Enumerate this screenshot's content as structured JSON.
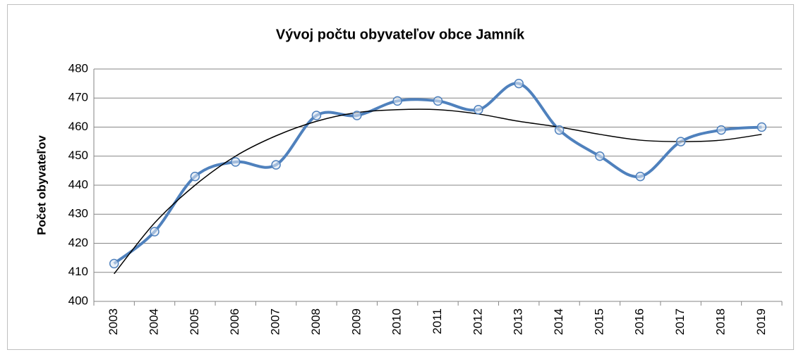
{
  "chart_data": {
    "type": "line",
    "title": "Vývoj počtu obyvateľov obce Jamník",
    "y_label": "Počet obyvateľov",
    "categories": [
      "2003",
      "2004",
      "2005",
      "2006",
      "2007",
      "2008",
      "2009",
      "2010",
      "2011",
      "2012",
      "2013",
      "2014",
      "2015",
      "2016",
      "2017",
      "2018",
      "2019"
    ],
    "series": [
      {
        "name": "Počet obyvateľov",
        "color": "#4f81bd",
        "values": [
          413,
          424,
          443,
          448,
          447,
          464,
          464,
          469,
          469,
          466,
          475,
          459,
          450,
          443,
          455,
          459,
          460
        ]
      }
    ],
    "trendline": {
      "color": "#000000",
      "values": [
        409.5,
        427,
        440,
        450,
        457,
        462,
        465,
        466,
        466,
        464.5,
        462,
        460,
        457.5,
        455.5,
        455,
        455.5,
        457.5
      ]
    },
    "ylim": [
      400,
      480
    ],
    "yticks": [
      400,
      410,
      420,
      430,
      440,
      450,
      460,
      470,
      480
    ],
    "grid": true
  }
}
